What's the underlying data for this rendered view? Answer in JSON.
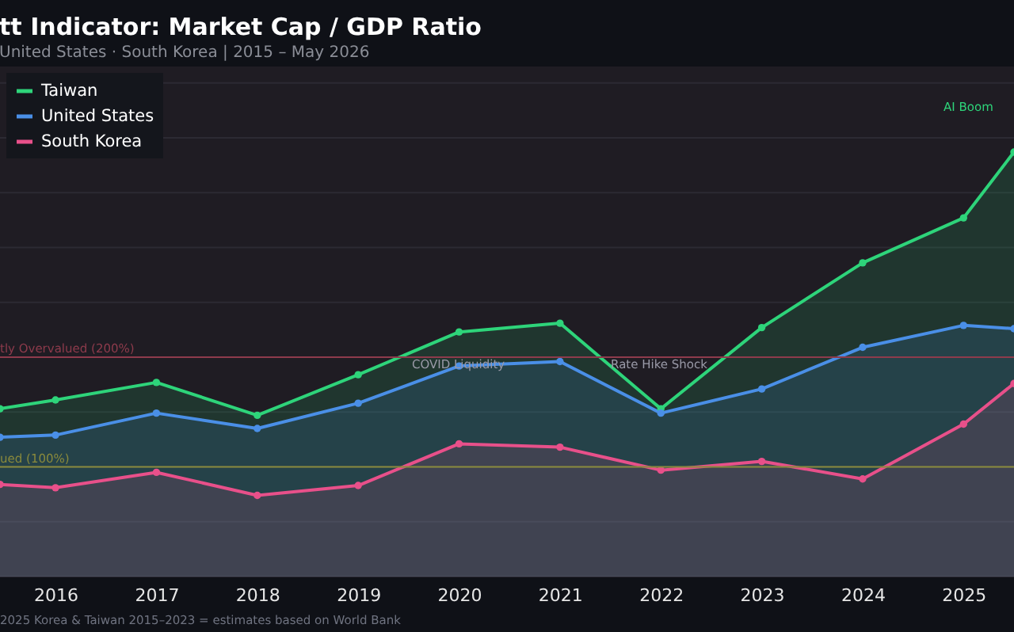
{
  "chart_data": {
    "type": "area",
    "title": "tt Indicator: Market Cap / GDP Ratio",
    "subtitle": "United States · South Korea  |  2015 – May 2026",
    "x": [
      2015.45,
      2016,
      2017,
      2018,
      2019,
      2020,
      2021,
      2022,
      2023,
      2024,
      2025,
      2025.5
    ],
    "xlim": [
      2015.45,
      2025.5
    ],
    "xticks": [
      2016,
      2017,
      2018,
      2019,
      2020,
      2021,
      2022,
      2023,
      2024,
      2025
    ],
    "ylim": [
      0,
      465
    ],
    "yticks": [
      {
        "value": 0,
        "label": null
      },
      {
        "value": 50,
        "label": null
      },
      {
        "value": 100,
        "label": null
      },
      {
        "value": 150,
        "label": null
      },
      {
        "value": 200,
        "label": null
      },
      {
        "value": 250,
        "label": null
      },
      {
        "value": 300,
        "label": null
      },
      {
        "value": 350,
        "label": null
      },
      {
        "value": 400,
        "label": null
      },
      {
        "value": 450,
        "label": null
      }
    ],
    "tick_labels": "x",
    "grid": "y",
    "legend": "top left",
    "marker": "circle",
    "line_style": "solid",
    "series": [
      {
        "name": "Taiwan",
        "color": "#2ed47a",
        "values": [
          153,
          161,
          177,
          147,
          184,
          223,
          231,
          153,
          227,
          286,
          327,
          387
        ]
      },
      {
        "name": "United States",
        "color": "#4a8fe7",
        "values": [
          127,
          129,
          149,
          135,
          158,
          192,
          196,
          149,
          171,
          209,
          229,
          226
        ]
      },
      {
        "name": "South Korea",
        "color": "#e8508a",
        "values": [
          84,
          81,
          95,
          74,
          83,
          121,
          118,
          97,
          105,
          89,
          139,
          176
        ]
      }
    ],
    "ref_lines": [
      {
        "axis": "y",
        "value": 200,
        "label": "tly Overvalued (200%)",
        "color": "#8e3b4c",
        "line_style": "solid"
      },
      {
        "axis": "y",
        "value": 100,
        "label": "ued (100%)",
        "color": "#8a8a3c",
        "line_style": "solid"
      }
    ],
    "annotations": [
      "COVID Liquidity",
      "Rate Hike Shock",
      "AI Boom",
      "2025 Korea & Taiwan 2015–2023 = estimates based on World Bank"
    ]
  }
}
